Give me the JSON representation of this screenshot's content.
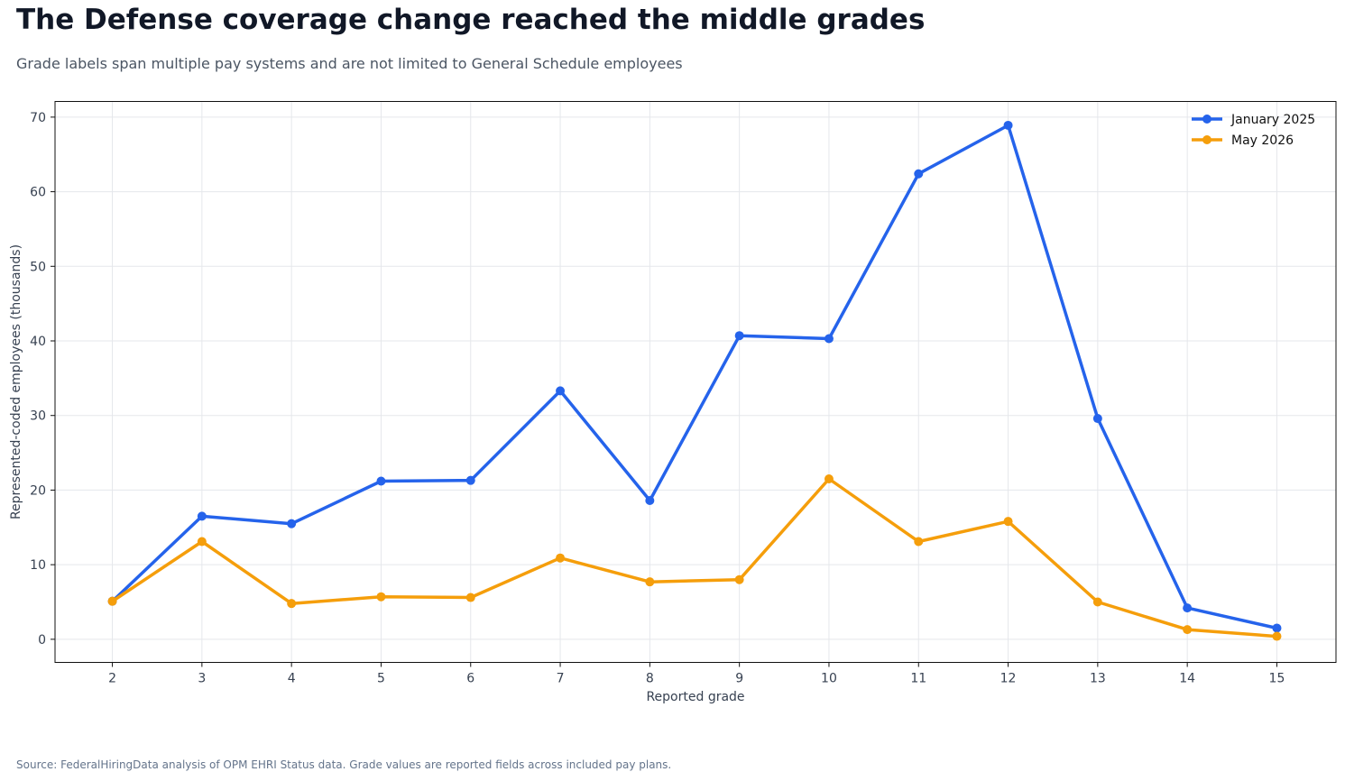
{
  "title": "The Defense coverage change reached the middle grades",
  "subtitle": "Grade labels span multiple pay systems and are not limited to General Schedule employees",
  "source": "Source: FederalHiringData analysis of OPM EHRI Status data. Grade values are reported fields across included pay plans.",
  "chart_data": {
    "type": "line",
    "x": [
      2,
      3,
      4,
      5,
      6,
      7,
      8,
      9,
      10,
      11,
      12,
      13,
      14,
      15
    ],
    "xlabel": "Reported grade",
    "ylabel": "Represented-coded employees (thousands)",
    "xlim": [
      1.36,
      15.66
    ],
    "ylim": [
      -3.1,
      72.1
    ],
    "yticks": [
      0,
      10,
      20,
      30,
      40,
      50,
      60,
      70
    ],
    "grid": true,
    "legend_position": "top-right",
    "series": [
      {
        "name": "January 2025",
        "color": "#2563eb",
        "values": [
          5.1,
          16.5,
          15.5,
          21.2,
          21.3,
          33.3,
          18.6,
          40.7,
          40.3,
          62.4,
          68.9,
          29.6,
          4.2,
          1.5
        ]
      },
      {
        "name": "May 2026",
        "color": "#f59e0b",
        "values": [
          5.1,
          13.1,
          4.8,
          5.7,
          5.6,
          10.9,
          7.7,
          8.0,
          21.5,
          13.1,
          15.8,
          5.0,
          1.3,
          0.4
        ]
      }
    ]
  }
}
